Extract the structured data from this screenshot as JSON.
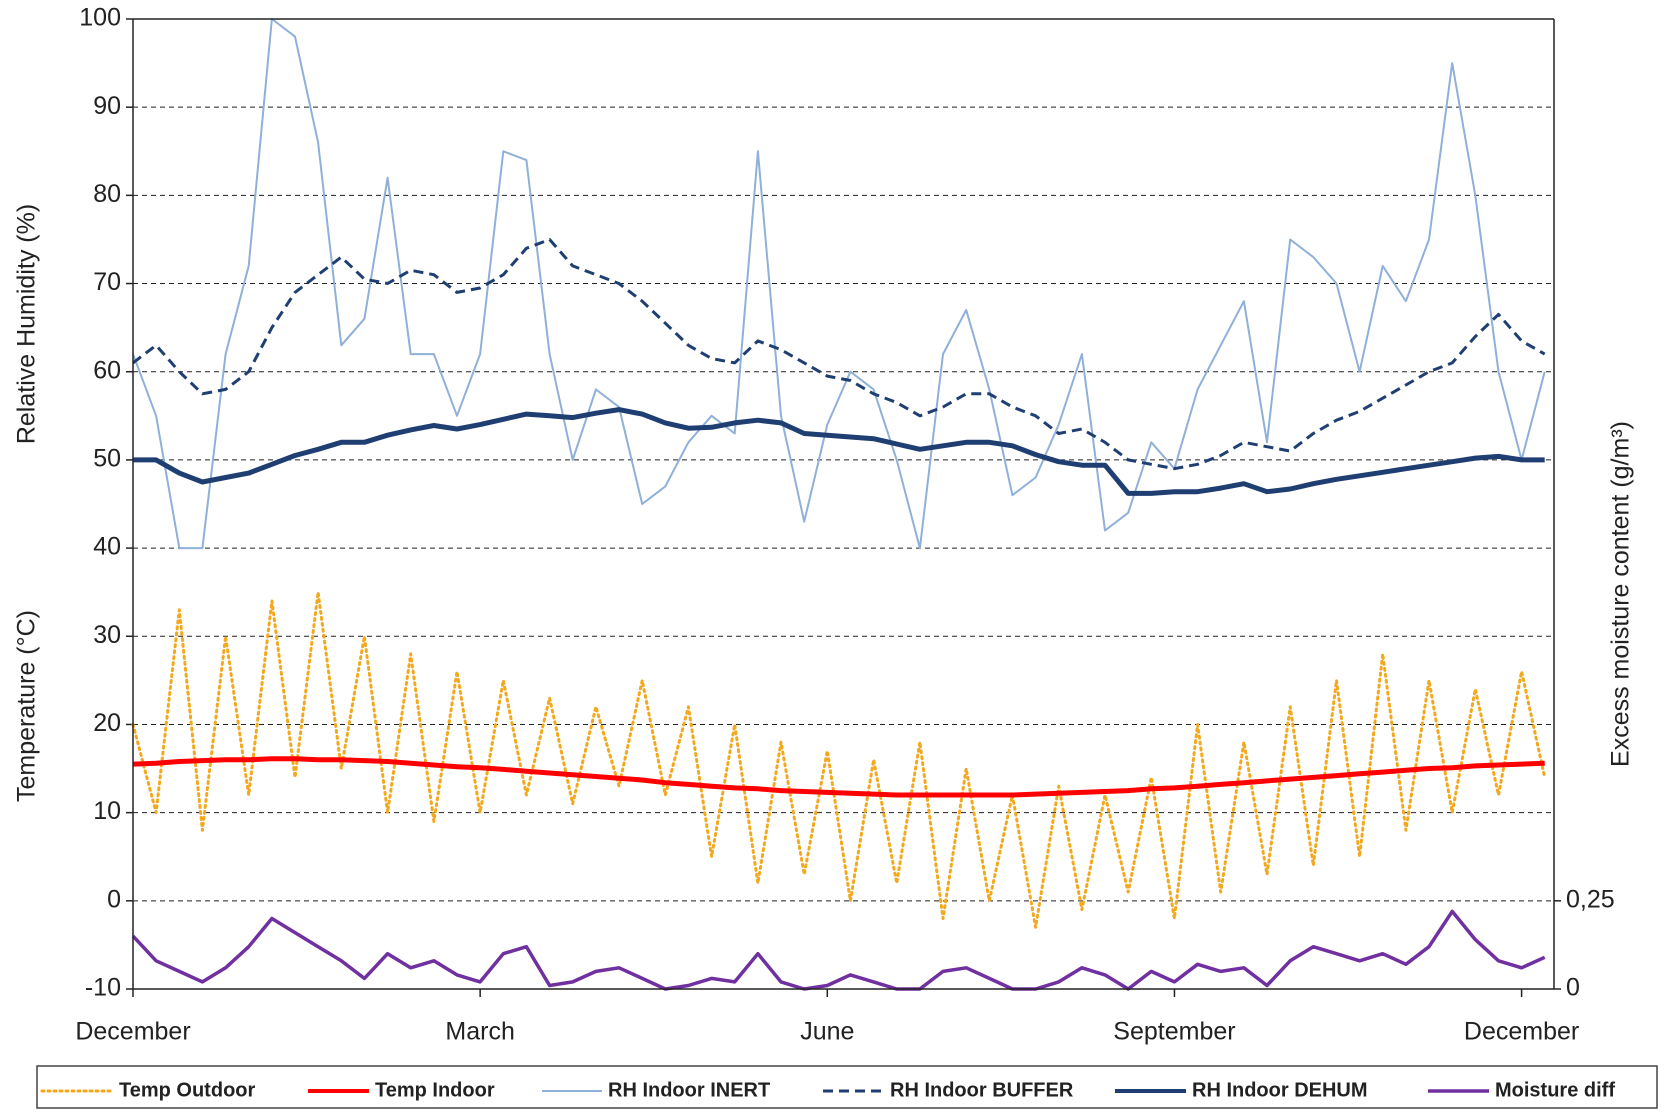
{
  "chart_data": {
    "type": "line",
    "ylabel": "Relative Humidity (%)",
    "ylabel_2": "Temperature (°C)",
    "y2label": "Excess moisture content (g/m³)",
    "x": [
      0,
      0.2,
      0.4,
      0.6,
      0.8,
      1,
      1.2,
      1.4,
      1.6,
      1.8,
      2,
      2.2,
      2.4,
      2.6,
      2.8,
      3,
      3.2,
      3.4,
      3.6,
      3.8,
      4,
      4.2,
      4.4,
      4.6,
      4.8,
      5,
      5.2,
      5.4,
      5.6,
      5.8,
      6,
      6.2,
      6.4,
      6.6,
      6.8,
      7,
      7.2,
      7.4,
      7.6,
      7.8,
      8,
      8.2,
      8.4,
      8.6,
      8.8,
      9,
      9.2,
      9.4,
      9.6,
      9.8,
      10,
      10.2,
      10.4,
      10.6,
      10.8,
      11,
      11.2,
      11.4,
      11.6,
      11.8,
      12,
      12.2
    ],
    "xlim": [
      0,
      12.28
    ],
    "xticks": [
      {
        "value": 0,
        "label": "December"
      },
      {
        "value": 3,
        "label": "March"
      },
      {
        "value": 6,
        "label": "June"
      },
      {
        "value": 9,
        "label": "September"
      },
      {
        "value": 12,
        "label": "December"
      }
    ],
    "ylim": [
      -10,
      100
    ],
    "yticks": [
      -10,
      0,
      10,
      20,
      30,
      40,
      50,
      60,
      70,
      80,
      90,
      100
    ],
    "y2lim": [
      0,
      2.75
    ],
    "y2ticks": [
      0,
      {
        "value": 0.25,
        "label": "0,25"
      }
    ],
    "grid": true,
    "legend": "bottom",
    "series": [
      {
        "name": "Temp Outdoor",
        "color": "#f4a81d",
        "line_style": "dotted",
        "values": [
          20,
          10,
          33,
          8,
          30,
          12,
          34,
          14,
          35,
          15,
          30,
          10,
          28,
          9,
          26,
          10,
          25,
          12,
          23,
          11,
          22,
          13,
          25,
          12,
          22,
          5,
          20,
          2,
          18,
          3,
          17,
          0,
          16,
          2,
          18,
          -2,
          15,
          0,
          12,
          -3,
          13,
          -1,
          12,
          1,
          14,
          -2,
          20,
          1,
          18,
          3,
          22,
          4,
          25,
          5,
          28,
          8,
          25,
          10,
          24,
          12,
          26,
          14
        ]
      },
      {
        "name": "Temp Indoor",
        "color": "#ff0000",
        "line_style": "solid",
        "values": [
          15.5,
          15.6,
          15.8,
          15.9,
          16,
          16,
          16.1,
          16.1,
          16,
          16,
          15.9,
          15.8,
          15.6,
          15.4,
          15.2,
          15.1,
          14.9,
          14.7,
          14.5,
          14.3,
          14.1,
          13.9,
          13.7,
          13.4,
          13.2,
          13,
          12.8,
          12.7,
          12.5,
          12.4,
          12.3,
          12.2,
          12.1,
          12,
          12,
          12,
          12,
          12,
          12,
          12.1,
          12.2,
          12.3,
          12.4,
          12.5,
          12.7,
          12.8,
          13,
          13.2,
          13.4,
          13.6,
          13.8,
          14,
          14.2,
          14.4,
          14.6,
          14.8,
          15,
          15.1,
          15.3,
          15.4,
          15.5,
          15.6
        ]
      },
      {
        "name": "RH Indoor INERT",
        "color": "#8fb0d8",
        "line_style": "solid",
        "values": [
          62,
          55,
          40,
          40,
          62,
          72,
          100,
          98,
          86,
          63,
          66,
          82,
          62,
          62,
          55,
          62,
          85,
          84,
          62,
          50,
          58,
          56,
          45,
          47,
          52,
          55,
          53,
          85,
          55,
          43,
          54,
          60,
          58,
          50,
          40,
          62,
          67,
          58,
          46,
          48,
          54,
          62,
          42,
          44,
          52,
          49,
          58,
          63,
          68,
          52,
          75,
          73,
          70,
          60,
          72,
          68,
          75,
          95,
          80,
          60,
          50,
          60
        ]
      },
      {
        "name": "RH Indoor BUFFER",
        "color": "#1f3f73",
        "line_style": "dashed",
        "values": [
          61,
          63,
          60,
          57.5,
          58,
          60,
          65,
          69,
          71,
          73,
          70.5,
          70,
          71.5,
          71,
          69,
          69.5,
          71,
          74,
          75,
          72,
          71,
          70,
          68,
          65.5,
          63,
          61.5,
          61,
          63.5,
          62.5,
          61,
          59.5,
          59,
          57.5,
          56.5,
          55,
          56,
          57.5,
          57.5,
          56,
          55,
          53,
          53.5,
          52,
          50,
          49.5,
          49,
          49.5,
          50.5,
          52,
          51.5,
          51,
          53,
          54.5,
          55.5,
          57,
          58.5,
          60,
          61,
          64,
          66.5,
          63.5,
          62
        ]
      },
      {
        "name": "RH Indoor DEHUM",
        "color": "#1f3f73",
        "line_style": "solid",
        "values": [
          50,
          50,
          48.5,
          47.5,
          48,
          48.5,
          49.5,
          50.5,
          51.2,
          52,
          52,
          52.8,
          53.4,
          53.9,
          53.5,
          54,
          54.6,
          55.2,
          55,
          54.8,
          55.3,
          55.7,
          55.2,
          54.2,
          53.6,
          53.7,
          54.2,
          54.5,
          54.2,
          53,
          52.8,
          52.6,
          52.4,
          51.8,
          51.2,
          51.6,
          52,
          52,
          51.6,
          50.6,
          49.8,
          49.4,
          49.4,
          46.2,
          46.2,
          46.4,
          46.4,
          46.8,
          47.3,
          46.4,
          46.7,
          47.3,
          47.8,
          48.2,
          48.6,
          49,
          49.4,
          49.8,
          50.2,
          50.4,
          50,
          50
        ]
      },
      {
        "name": "Moisture diff",
        "color": "#7030a0",
        "line_style": "solid",
        "axis": "y2",
        "values": [
          0.15,
          0.08,
          0.05,
          0.02,
          0.06,
          0.12,
          0.2,
          0.16,
          0.12,
          0.08,
          0.03,
          0.1,
          0.06,
          0.08,
          0.04,
          0.02,
          0.1,
          0.12,
          0.01,
          0.02,
          0.05,
          0.06,
          0.03,
          0,
          0.01,
          0.03,
          0.02,
          0.1,
          0.02,
          0,
          0.01,
          0.04,
          0.02,
          0,
          0,
          0.05,
          0.06,
          0.03,
          0,
          0,
          0.02,
          0.06,
          0.04,
          0,
          0.05,
          0.02,
          0.07,
          0.05,
          0.06,
          0.01,
          0.08,
          0.12,
          0.1,
          0.08,
          0.1,
          0.07,
          0.12,
          0.22,
          0.14,
          0.08,
          0.06,
          0.09
        ]
      }
    ]
  }
}
